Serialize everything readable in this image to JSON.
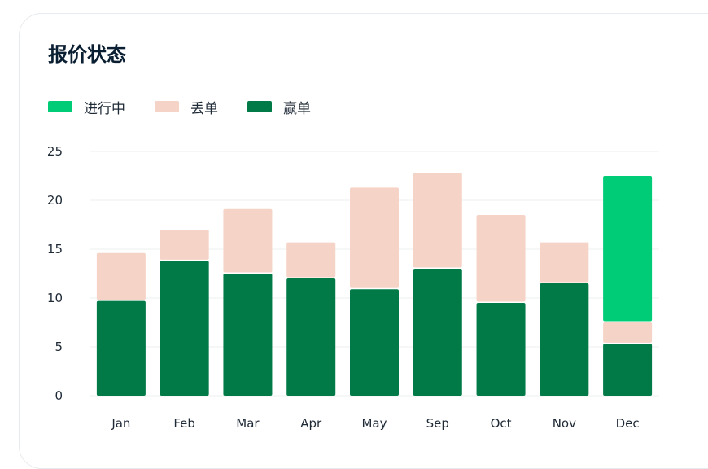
{
  "card": {
    "title": "报价状态"
  },
  "colors": {
    "in_progress": "#00cc77",
    "lost": "#f6d3c7",
    "won": "#027a48",
    "grid": "#eef0f2"
  },
  "chart_data": {
    "type": "bar",
    "stacked": true,
    "title": "报价状态",
    "xlabel": "",
    "ylabel": "",
    "categories": [
      "Jan",
      "Feb",
      "Mar",
      "Apr",
      "May",
      "Sep",
      "Oct",
      "Nov",
      "Dec"
    ],
    "series": [
      {
        "name": "赢单",
        "key": "won",
        "values": [
          9.7,
          13.8,
          12.5,
          12.0,
          10.9,
          13.0,
          9.5,
          11.5,
          5.3
        ]
      },
      {
        "name": "丢单",
        "key": "lost",
        "values": [
          4.9,
          3.2,
          6.6,
          3.7,
          10.4,
          9.8,
          9.0,
          4.2,
          2.2
        ]
      },
      {
        "name": "进行中",
        "key": "in_progress",
        "values": [
          0,
          0,
          0,
          0,
          0,
          0,
          0,
          0,
          15.0
        ]
      }
    ],
    "legend_order": [
      "进行中",
      "丢单",
      "赢单"
    ],
    "ylim": [
      0,
      25
    ],
    "yticks": [
      0,
      5,
      10,
      15,
      20,
      25
    ],
    "grid": true,
    "legend_position": "top-left"
  }
}
